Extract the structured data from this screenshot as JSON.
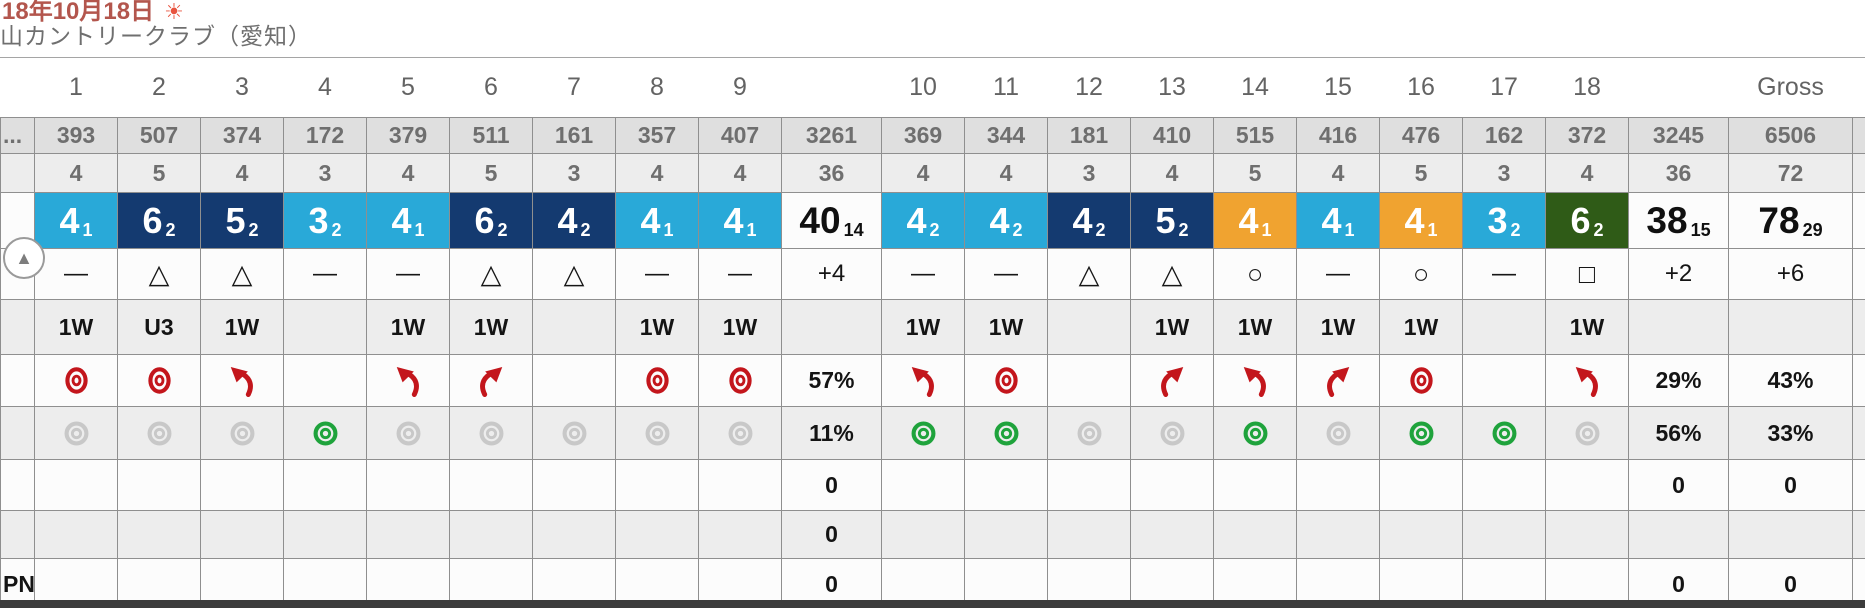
{
  "header": {
    "date_line": "18年10月18日",
    "weather_icon": "sun-icon",
    "weather_glyph": "☀",
    "course_name": "山カントリークラブ（愛知）"
  },
  "colors": {
    "par": "#29A9D8",
    "bogey": "#143A70",
    "birdie": "#F0A330",
    "double": "#2F5B17",
    "fairway_icon": "#C3161C",
    "green_hit_icon": "#1FA33C",
    "green_miss_icon": "#C8C8C8",
    "sun": "#E8543F",
    "date_text": "#B3564D"
  },
  "expand_button": {
    "icon": "up-arrow-icon",
    "glyph": "▲"
  },
  "table": {
    "corner": {
      "yardage_label": "...",
      "pn_label": "PN"
    },
    "columns": [
      {
        "id": "h1",
        "kind": "hole",
        "head": "1",
        "yd": "393",
        "par": "4",
        "score": "4",
        "putts": "1",
        "score_type": "par",
        "sym": "—",
        "club": "1W",
        "fw": "hit",
        "gr": "miss",
        "z1": "",
        "z2": "",
        "z3": ""
      },
      {
        "id": "h2",
        "kind": "hole",
        "head": "2",
        "yd": "507",
        "par": "5",
        "score": "6",
        "putts": "2",
        "score_type": "bogey",
        "sym": "△",
        "club": "U3",
        "fw": "hit",
        "gr": "miss",
        "z1": "",
        "z2": "",
        "z3": ""
      },
      {
        "id": "h3",
        "kind": "hole",
        "head": "3",
        "yd": "374",
        "par": "4",
        "score": "5",
        "putts": "2",
        "score_type": "bogey",
        "sym": "△",
        "club": "1W",
        "fw": "left",
        "gr": "miss",
        "z1": "",
        "z2": "",
        "z3": ""
      },
      {
        "id": "h4",
        "kind": "hole",
        "head": "4",
        "yd": "172",
        "par": "3",
        "score": "3",
        "putts": "2",
        "score_type": "par",
        "sym": "—",
        "club": "",
        "fw": "",
        "gr": "hit",
        "z1": "",
        "z2": "",
        "z3": ""
      },
      {
        "id": "h5",
        "kind": "hole",
        "head": "5",
        "yd": "379",
        "par": "4",
        "score": "4",
        "putts": "1",
        "score_type": "par",
        "sym": "—",
        "club": "1W",
        "fw": "left",
        "gr": "miss",
        "z1": "",
        "z2": "",
        "z3": ""
      },
      {
        "id": "h6",
        "kind": "hole",
        "head": "6",
        "yd": "511",
        "par": "5",
        "score": "6",
        "putts": "2",
        "score_type": "bogey",
        "sym": "△",
        "club": "1W",
        "fw": "right",
        "gr": "miss",
        "z1": "",
        "z2": "",
        "z3": ""
      },
      {
        "id": "h7",
        "kind": "hole",
        "head": "7",
        "yd": "161",
        "par": "3",
        "score": "4",
        "putts": "2",
        "score_type": "bogey",
        "sym": "△",
        "club": "",
        "fw": "",
        "gr": "miss",
        "z1": "",
        "z2": "",
        "z3": ""
      },
      {
        "id": "h8",
        "kind": "hole",
        "head": "8",
        "yd": "357",
        "par": "4",
        "score": "4",
        "putts": "1",
        "score_type": "par",
        "sym": "—",
        "club": "1W",
        "fw": "hit",
        "gr": "miss",
        "z1": "",
        "z2": "",
        "z3": ""
      },
      {
        "id": "h9",
        "kind": "hole",
        "head": "9",
        "yd": "407",
        "par": "4",
        "score": "4",
        "putts": "1",
        "score_type": "par",
        "sym": "—",
        "club": "1W",
        "fw": "hit",
        "gr": "miss",
        "z1": "",
        "z2": "",
        "z3": ""
      },
      {
        "id": "out",
        "kind": "out",
        "head": "",
        "yd": "3261",
        "par": "36",
        "score": "40",
        "putts": "14",
        "score_type": "total",
        "sym": "+4",
        "club": "",
        "fw": "57%",
        "gr": "11%",
        "z1": "0",
        "z2": "0",
        "z3": "0"
      },
      {
        "id": "h10",
        "kind": "hole",
        "head": "10",
        "yd": "369",
        "par": "4",
        "score": "4",
        "putts": "2",
        "score_type": "par",
        "sym": "—",
        "club": "1W",
        "fw": "left",
        "gr": "hit",
        "z1": "",
        "z2": "",
        "z3": ""
      },
      {
        "id": "h11",
        "kind": "hole",
        "head": "11",
        "yd": "344",
        "par": "4",
        "score": "4",
        "putts": "2",
        "score_type": "par",
        "sym": "—",
        "club": "1W",
        "fw": "hit",
        "gr": "hit",
        "z1": "",
        "z2": "",
        "z3": ""
      },
      {
        "id": "h12",
        "kind": "hole",
        "head": "12",
        "yd": "181",
        "par": "3",
        "score": "4",
        "putts": "2",
        "score_type": "bogey",
        "sym": "△",
        "club": "",
        "fw": "",
        "gr": "miss",
        "z1": "",
        "z2": "",
        "z3": ""
      },
      {
        "id": "h13",
        "kind": "hole",
        "head": "13",
        "yd": "410",
        "par": "4",
        "score": "5",
        "putts": "2",
        "score_type": "bogey",
        "sym": "△",
        "club": "1W",
        "fw": "right",
        "gr": "miss",
        "z1": "",
        "z2": "",
        "z3": ""
      },
      {
        "id": "h14",
        "kind": "hole",
        "head": "14",
        "yd": "515",
        "par": "5",
        "score": "4",
        "putts": "1",
        "score_type": "birdie",
        "sym": "○",
        "club": "1W",
        "fw": "left",
        "gr": "hit",
        "z1": "",
        "z2": "",
        "z3": ""
      },
      {
        "id": "h15",
        "kind": "hole",
        "head": "15",
        "yd": "416",
        "par": "4",
        "score": "4",
        "putts": "1",
        "score_type": "par",
        "sym": "—",
        "club": "1W",
        "fw": "right",
        "gr": "miss",
        "z1": "",
        "z2": "",
        "z3": ""
      },
      {
        "id": "h16",
        "kind": "hole",
        "head": "16",
        "yd": "476",
        "par": "5",
        "score": "4",
        "putts": "1",
        "score_type": "birdie",
        "sym": "○",
        "club": "1W",
        "fw": "hit",
        "gr": "hit",
        "z1": "",
        "z2": "",
        "z3": ""
      },
      {
        "id": "h17",
        "kind": "hole",
        "head": "17",
        "yd": "162",
        "par": "3",
        "score": "3",
        "putts": "2",
        "score_type": "par",
        "sym": "—",
        "club": "",
        "fw": "",
        "gr": "hit",
        "z1": "",
        "z2": "",
        "z3": ""
      },
      {
        "id": "h18",
        "kind": "hole",
        "head": "18",
        "yd": "372",
        "par": "4",
        "score": "6",
        "putts": "2",
        "score_type": "double",
        "sym": "□",
        "club": "1W",
        "fw": "left",
        "gr": "miss",
        "z1": "",
        "z2": "",
        "z3": ""
      },
      {
        "id": "in",
        "kind": "in",
        "head": "",
        "yd": "3245",
        "par": "36",
        "score": "38",
        "putts": "15",
        "score_type": "total",
        "sym": "+2",
        "club": "",
        "fw": "29%",
        "gr": "56%",
        "z1": "0",
        "z2": "",
        "z3": "0"
      },
      {
        "id": "gross",
        "kind": "gross",
        "head": "Gross",
        "yd": "6506",
        "par": "72",
        "score": "78",
        "putts": "29",
        "score_type": "total",
        "sym": "+6",
        "club": "",
        "fw": "43%",
        "gr": "33%",
        "z1": "0",
        "z2": "",
        "z3": "0"
      },
      {
        "id": "edge",
        "kind": "edge",
        "head": "",
        "yd": "",
        "par": "",
        "score": "",
        "putts": "",
        "score_type": "",
        "sym": "",
        "club": "",
        "fw": "",
        "gr": "",
        "z1": "",
        "z2": "",
        "z3": ""
      }
    ]
  }
}
